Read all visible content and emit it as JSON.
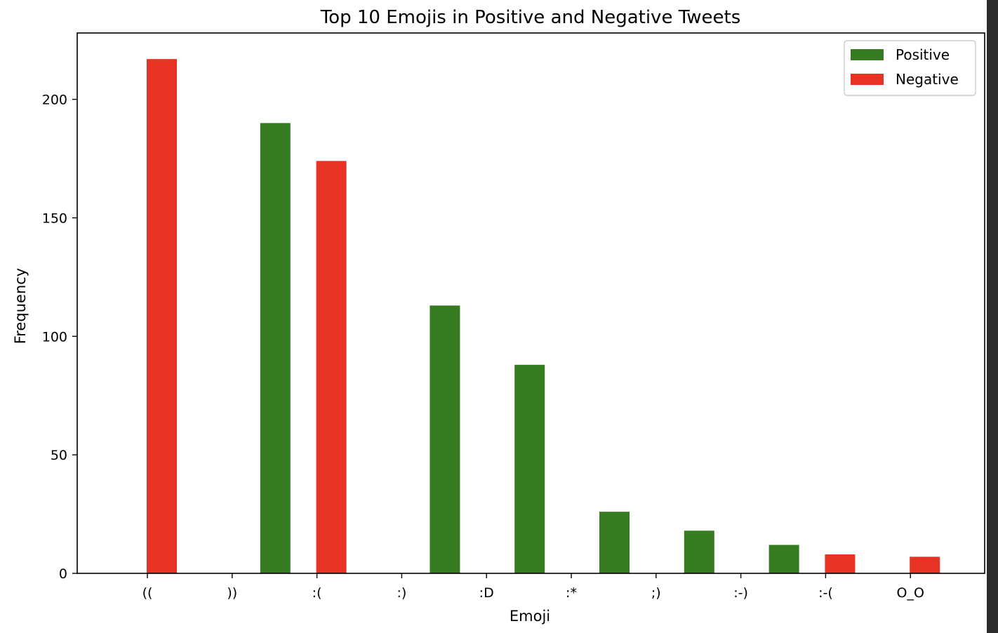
{
  "chart_data": {
    "type": "bar",
    "title": "Top 10 Emojis in Positive and Negative Tweets",
    "xlabel": "Emoji",
    "ylabel": "Frequency",
    "categories": [
      "((",
      "))",
      ":(",
      ":)",
      ":D",
      ":*",
      ";)",
      ":-)",
      ":-(",
      "O_O"
    ],
    "ylim": [
      0,
      228
    ],
    "yticks": [
      0,
      50,
      100,
      150,
      200
    ],
    "legend_position": "top-right",
    "series": [
      {
        "name": "Positive",
        "color": "#367b21",
        "offset": "right",
        "values": [
          0,
          190,
          0,
          113,
          88,
          26,
          18,
          12,
          0,
          0
        ]
      },
      {
        "name": "Negative",
        "color": "#e63323",
        "offset": "left",
        "values": [
          217,
          0,
          174,
          0,
          0,
          0,
          0,
          0,
          8,
          7
        ]
      }
    ]
  }
}
